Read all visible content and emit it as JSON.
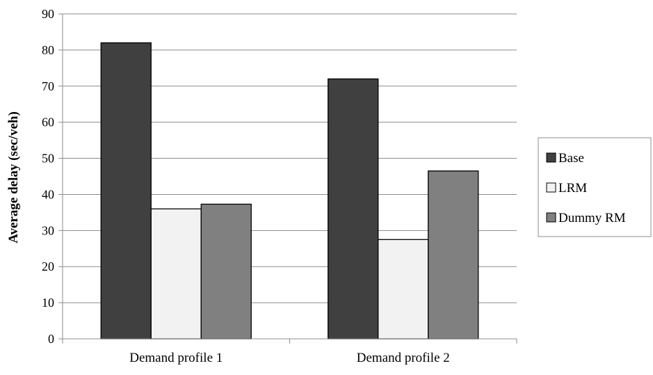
{
  "chart_data": {
    "type": "bar",
    "title": "",
    "xlabel": "",
    "ylabel": "Average delay (sec/veh)",
    "categories": [
      "Demand profile 1",
      "Demand profile 2"
    ],
    "series": [
      {
        "name": "Base",
        "values": [
          82,
          72
        ],
        "color": "#404040"
      },
      {
        "name": "LRM",
        "values": [
          36,
          27.5
        ],
        "color": "#f2f2f2"
      },
      {
        "name": "Dummy RM",
        "values": [
          37.3,
          46.5
        ],
        "color": "#808080"
      }
    ],
    "ylim": [
      0,
      90
    ],
    "yticks": [
      0,
      10,
      20,
      30,
      40,
      50,
      60,
      70,
      80,
      90
    ],
    "grid": true,
    "legend_position": "right"
  }
}
